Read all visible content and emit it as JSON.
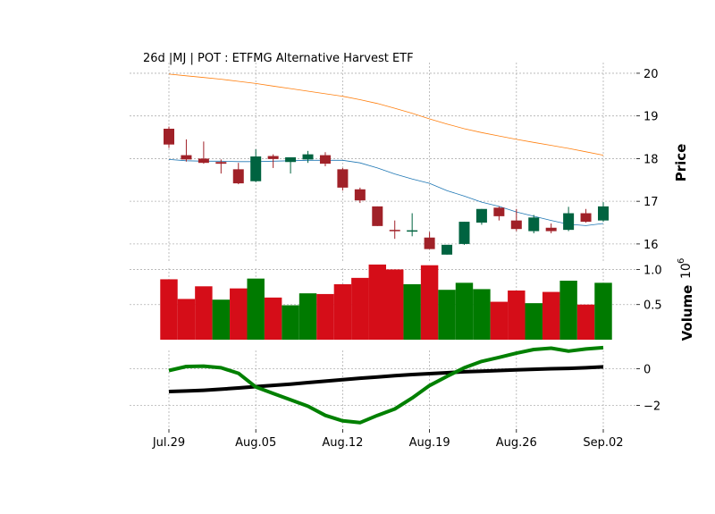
{
  "chart_data": {
    "type": "candlestick",
    "title": "26d |MJ | POT : ETFMG Alternative Harvest ETF",
    "x_tick_labels": [
      "Jul.29",
      "Aug.05",
      "Aug.12",
      "Aug.19",
      "Aug.26",
      "Sep.02"
    ],
    "x_tick_indices": [
      0,
      5,
      10,
      15,
      20,
      25
    ],
    "colors": {
      "up_candle": "#006340",
      "down_candle": "#a02128",
      "up_volume": "#007a00",
      "down_volume": "#d50d18",
      "ma_short": "#1f77b4",
      "ma_long": "#ff7f0e",
      "indicator_green": "#008000",
      "indicator_black": "#000000"
    },
    "price_panel": {
      "ylabel": "Price",
      "ylim": [
        15.6,
        20.25
      ],
      "yticks": [
        16,
        17,
        18,
        19,
        20
      ],
      "ohlc": [
        {
          "o": 18.7,
          "h": 18.75,
          "l": 18.25,
          "c": 18.33
        },
        {
          "o": 18.08,
          "h": 18.45,
          "l": 17.93,
          "c": 17.98
        },
        {
          "o": 18.0,
          "h": 18.4,
          "l": 17.88,
          "c": 17.9
        },
        {
          "o": 17.92,
          "h": 17.98,
          "l": 17.65,
          "c": 17.88
        },
        {
          "o": 17.75,
          "h": 17.9,
          "l": 17.4,
          "c": 17.42
        },
        {
          "o": 17.47,
          "h": 18.22,
          "l": 17.45,
          "c": 18.05
        },
        {
          "o": 18.06,
          "h": 18.1,
          "l": 17.78,
          "c": 17.99
        },
        {
          "o": 17.92,
          "h": 18.03,
          "l": 17.65,
          "c": 18.03
        },
        {
          "o": 17.98,
          "h": 18.18,
          "l": 17.9,
          "c": 18.1
        },
        {
          "o": 18.08,
          "h": 18.15,
          "l": 17.82,
          "c": 17.88
        },
        {
          "o": 17.75,
          "h": 17.78,
          "l": 17.25,
          "c": 17.32
        },
        {
          "o": 17.28,
          "h": 17.32,
          "l": 16.96,
          "c": 17.02
        },
        {
          "o": 16.88,
          "h": 16.88,
          "l": 16.42,
          "c": 16.42
        },
        {
          "o": 16.33,
          "h": 16.55,
          "l": 16.12,
          "c": 16.3
        },
        {
          "o": 16.29,
          "h": 16.72,
          "l": 16.18,
          "c": 16.32
        },
        {
          "o": 16.15,
          "h": 16.28,
          "l": 15.88,
          "c": 15.88
        },
        {
          "o": 15.75,
          "h": 15.98,
          "l": 15.75,
          "c": 15.98
        },
        {
          "o": 16.0,
          "h": 16.52,
          "l": 15.98,
          "c": 16.52
        },
        {
          "o": 16.5,
          "h": 16.82,
          "l": 16.45,
          "c": 16.82
        },
        {
          "o": 16.85,
          "h": 16.88,
          "l": 16.55,
          "c": 16.65
        },
        {
          "o": 16.55,
          "h": 16.82,
          "l": 16.3,
          "c": 16.35
        },
        {
          "o": 16.3,
          "h": 16.68,
          "l": 16.25,
          "c": 16.62
        },
        {
          "o": 16.38,
          "h": 16.48,
          "l": 16.25,
          "c": 16.3
        },
        {
          "o": 16.33,
          "h": 16.87,
          "l": 16.3,
          "c": 16.72
        },
        {
          "o": 16.72,
          "h": 16.82,
          "l": 16.5,
          "c": 16.52
        },
        {
          "o": 16.55,
          "h": 16.98,
          "l": 16.52,
          "c": 16.88
        }
      ],
      "ma_short": [
        17.98,
        17.95,
        17.94,
        17.94,
        17.93,
        17.93,
        17.94,
        17.95,
        17.96,
        17.96,
        17.96,
        17.9,
        17.78,
        17.64,
        17.52,
        17.42,
        17.25,
        17.12,
        16.98,
        16.88,
        16.75,
        16.65,
        16.55,
        16.46,
        16.43,
        16.48
      ],
      "ma_long": [
        19.98,
        19.94,
        19.9,
        19.86,
        19.81,
        19.76,
        19.7,
        19.64,
        19.58,
        19.52,
        19.46,
        19.38,
        19.29,
        19.18,
        19.06,
        18.93,
        18.81,
        18.7,
        18.61,
        18.53,
        18.45,
        18.38,
        18.31,
        18.24,
        18.16,
        18.08
      ]
    },
    "volume_panel": {
      "ylabel": "Volume",
      "exponent_label": "10",
      "exponent_power": "6",
      "ylim": [
        0,
        1.12
      ],
      "yticks": [
        0.5,
        1.0
      ],
      "ytick_labels": [
        "0.5",
        "1.0"
      ],
      "values": [
        0.86,
        0.58,
        0.76,
        0.57,
        0.73,
        0.87,
        0.6,
        0.49,
        0.66,
        0.65,
        0.79,
        0.88,
        1.07,
        1.0,
        0.79,
        1.06,
        0.71,
        0.81,
        0.72,
        0.54,
        0.7,
        0.52,
        0.68,
        0.84,
        0.5,
        0.81
      ],
      "up": [
        false,
        false,
        false,
        true,
        false,
        true,
        false,
        true,
        true,
        false,
        false,
        false,
        false,
        false,
        true,
        false,
        true,
        true,
        true,
        false,
        false,
        true,
        false,
        true,
        false,
        true
      ]
    },
    "indicator_panel": {
      "ylim": [
        -3.3,
        1.0
      ],
      "yticks": [
        0,
        -2
      ],
      "green_series": [
        -0.1,
        0.12,
        0.14,
        0.05,
        -0.25,
        -1.0,
        -1.35,
        -1.7,
        -2.05,
        -2.55,
        -2.85,
        -2.95,
        -2.55,
        -2.2,
        -1.6,
        -0.92,
        -0.42,
        0.05,
        0.4,
        0.62,
        0.85,
        1.05,
        1.12,
        0.96,
        1.08,
        1.15
      ],
      "black_series": [
        -1.25,
        -1.22,
        -1.18,
        -1.12,
        -1.05,
        -0.98,
        -0.91,
        -0.84,
        -0.76,
        -0.68,
        -0.6,
        -0.52,
        -0.45,
        -0.38,
        -0.32,
        -0.27,
        -0.22,
        -0.17,
        -0.14,
        -0.1,
        -0.06,
        -0.03,
        0.0,
        0.02,
        0.05,
        0.1
      ]
    }
  }
}
